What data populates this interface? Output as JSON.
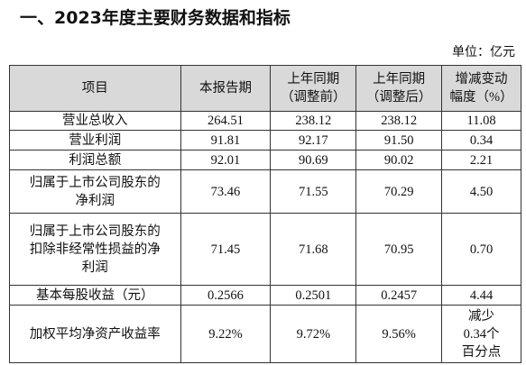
{
  "header": {
    "title": "一、2023年度主要财务数据和指标",
    "unit": "单位：亿元"
  },
  "table": {
    "columns": [
      [
        "项目"
      ],
      [
        "本报告期"
      ],
      [
        "上年同期",
        "（调整前）"
      ],
      [
        "上年同期",
        "（调整后）"
      ],
      [
        "增减变动",
        "幅度（%）"
      ]
    ],
    "rows": [
      [
        [
          "营业总收入"
        ],
        [
          "264.51"
        ],
        [
          "238.12"
        ],
        [
          "238.12"
        ],
        [
          "11.08"
        ]
      ],
      [
        [
          "营业利润"
        ],
        [
          "91.81"
        ],
        [
          "92.17"
        ],
        [
          "91.50"
        ],
        [
          "0.34"
        ]
      ],
      [
        [
          "利润总额"
        ],
        [
          "92.01"
        ],
        [
          "90.69"
        ],
        [
          "90.02"
        ],
        [
          "2.21"
        ]
      ],
      [
        [
          "归属于上市公司股东的",
          "净利润"
        ],
        [
          "73.46"
        ],
        [
          "71.55"
        ],
        [
          "70.29"
        ],
        [
          "4.50"
        ]
      ],
      [
        [
          "归属于上市公司股东的",
          "扣除非经常性损益的净",
          "利润"
        ],
        [
          "71.45"
        ],
        [
          "71.68"
        ],
        [
          "70.95"
        ],
        [
          "0.70"
        ]
      ],
      [
        [
          "基本每股收益（元）"
        ],
        [
          "0.2566"
        ],
        [
          "0.2501"
        ],
        [
          "0.2457"
        ],
        [
          "4.44"
        ]
      ],
      [
        [
          "加权平均净资产收益率"
        ],
        [
          "9.22%"
        ],
        [
          "9.72%"
        ],
        [
          "9.56%"
        ],
        [
          "减少",
          "0.34个",
          "百分点"
        ]
      ]
    ]
  }
}
